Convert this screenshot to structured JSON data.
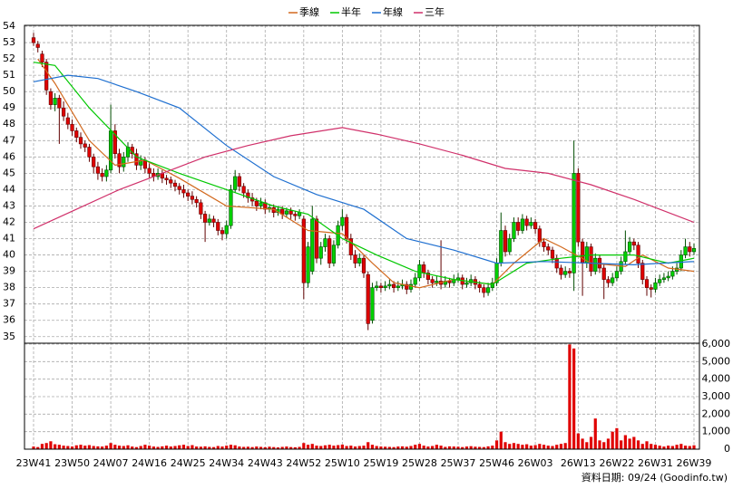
{
  "chart_data": {
    "type": "candlestick",
    "categories": [
      "23W41",
      null,
      null,
      null,
      null,
      null,
      null,
      null,
      null,
      "23W50",
      null,
      null,
      null,
      null,
      null,
      null,
      null,
      null,
      "24W07",
      null,
      null,
      null,
      null,
      null,
      null,
      null,
      null,
      "24W16",
      null,
      null,
      null,
      null,
      null,
      null,
      null,
      null,
      "24W25",
      null,
      null,
      null,
      null,
      null,
      null,
      null,
      null,
      "24W34",
      null,
      null,
      null,
      null,
      null,
      null,
      null,
      null,
      "24W43",
      null,
      null,
      null,
      null,
      null,
      null,
      null,
      null,
      "24W52",
      null,
      null,
      null,
      null,
      null,
      null,
      null,
      null,
      "25W10",
      null,
      null,
      null,
      null,
      null,
      null,
      null,
      null,
      "25W19",
      null,
      null,
      null,
      null,
      null,
      null,
      null,
      null,
      "25W28",
      null,
      null,
      null,
      null,
      null,
      null,
      null,
      null,
      "25W37",
      null,
      null,
      null,
      null,
      null,
      null,
      null,
      null,
      "25W46",
      null,
      null,
      null,
      null,
      null,
      null,
      null,
      null,
      "26W03",
      null,
      null,
      null,
      null,
      null,
      null,
      null,
      null,
      null,
      "26W13",
      null,
      null,
      null,
      null,
      null,
      null,
      null,
      null,
      "26W22",
      null,
      null,
      null,
      null,
      null,
      null,
      null,
      null,
      "26W31",
      null,
      null,
      null,
      null,
      null,
      null,
      null,
      null,
      "26W39"
    ],
    "candles": [
      [
        53.3,
        53.6,
        52.8,
        53.0
      ],
      [
        52.9,
        53.1,
        52.4,
        52.7
      ],
      [
        52.3,
        52.5,
        51.5,
        51.8
      ],
      [
        51.8,
        52.0,
        49.8,
        50.1
      ],
      [
        50.0,
        50.2,
        48.9,
        49.2
      ],
      [
        49.2,
        49.9,
        48.8,
        49.6
      ],
      [
        49.6,
        49.8,
        46.8,
        49.0
      ],
      [
        49.0,
        49.4,
        48.2,
        48.5
      ],
      [
        48.4,
        48.7,
        47.7,
        48.0
      ],
      [
        48.0,
        48.3,
        47.3,
        47.6
      ],
      [
        47.6,
        47.8,
        46.9,
        47.2
      ],
      [
        47.2,
        47.5,
        46.5,
        46.8
      ],
      [
        46.8,
        47.0,
        46.3,
        46.6
      ],
      [
        46.6,
        46.8,
        45.7,
        46.0
      ],
      [
        46.0,
        46.2,
        45.0,
        45.4
      ],
      [
        45.4,
        45.7,
        44.6,
        45.0
      ],
      [
        45.0,
        45.3,
        44.5,
        44.8
      ],
      [
        44.8,
        45.5,
        44.5,
        45.2
      ],
      [
        45.2,
        49.2,
        45.0,
        47.6
      ],
      [
        47.6,
        48.0,
        45.9,
        46.2
      ],
      [
        46.2,
        46.5,
        45.0,
        45.4
      ],
      [
        45.4,
        46.3,
        45.1,
        46.0
      ],
      [
        46.0,
        46.9,
        45.7,
        46.6
      ],
      [
        46.6,
        46.8,
        45.9,
        46.2
      ],
      [
        46.2,
        46.5,
        45.2,
        45.5
      ],
      [
        45.5,
        46.1,
        45.2,
        45.8
      ],
      [
        45.8,
        46.0,
        45.0,
        45.3
      ],
      [
        45.3,
        45.6,
        44.7,
        45.0
      ],
      [
        45.0,
        45.3,
        44.5,
        44.8
      ],
      [
        44.8,
        45.3,
        44.6,
        45.0
      ],
      [
        45.0,
        45.2,
        44.4,
        44.7
      ],
      [
        44.7,
        44.9,
        44.3,
        44.6
      ],
      [
        44.6,
        44.8,
        44.1,
        44.4
      ],
      [
        44.4,
        44.6,
        43.9,
        44.2
      ],
      [
        44.2,
        44.4,
        43.7,
        44.0
      ],
      [
        44.0,
        44.3,
        43.5,
        43.8
      ],
      [
        43.8,
        44.0,
        43.3,
        43.6
      ],
      [
        43.6,
        43.9,
        43.1,
        43.4
      ],
      [
        43.4,
        43.6,
        42.9,
        43.2
      ],
      [
        43.2,
        43.4,
        42.2,
        42.5
      ],
      [
        42.5,
        42.7,
        40.8,
        42.0
      ],
      [
        42.0,
        42.5,
        41.8,
        42.2
      ],
      [
        42.2,
        42.4,
        41.7,
        42.0
      ],
      [
        42.0,
        42.2,
        41.2,
        41.5
      ],
      [
        41.5,
        41.7,
        40.9,
        41.3
      ],
      [
        41.3,
        42.1,
        41.0,
        41.8
      ],
      [
        41.8,
        44.3,
        41.6,
        44.0
      ],
      [
        44.0,
        45.2,
        43.8,
        44.8
      ],
      [
        44.8,
        45.0,
        43.9,
        44.2
      ],
      [
        44.2,
        44.4,
        43.5,
        43.8
      ],
      [
        43.8,
        44.0,
        43.2,
        43.5
      ],
      [
        43.5,
        43.8,
        43.0,
        43.3
      ],
      [
        43.3,
        43.5,
        42.7,
        43.0
      ],
      [
        43.0,
        43.5,
        42.8,
        43.2
      ],
      [
        43.2,
        43.4,
        42.5,
        42.8
      ],
      [
        42.8,
        43.1,
        42.6,
        42.9
      ],
      [
        42.9,
        43.1,
        42.3,
        42.6
      ],
      [
        42.6,
        43.0,
        42.4,
        42.8
      ],
      [
        42.8,
        43.0,
        42.2,
        42.5
      ],
      [
        42.5,
        42.9,
        42.3,
        42.7
      ],
      [
        42.7,
        42.9,
        42.2,
        42.5
      ],
      [
        42.5,
        42.7,
        42.1,
        42.4
      ],
      [
        42.4,
        42.8,
        42.2,
        42.6
      ],
      [
        42.2,
        42.4,
        37.3,
        38.3
      ],
      [
        38.3,
        40.8,
        38.0,
        40.5
      ],
      [
        39.0,
        43.0,
        38.8,
        42.2
      ],
      [
        42.2,
        42.4,
        39.5,
        39.8
      ],
      [
        39.8,
        40.8,
        39.4,
        40.5
      ],
      [
        40.5,
        41.3,
        40.2,
        41.0
      ],
      [
        41.0,
        41.2,
        39.2,
        39.5
      ],
      [
        39.5,
        40.9,
        39.3,
        40.6
      ],
      [
        40.6,
        42.1,
        40.4,
        41.8
      ],
      [
        41.8,
        42.8,
        41.5,
        42.3
      ],
      [
        42.3,
        42.5,
        40.7,
        41.0
      ],
      [
        41.0,
        41.3,
        39.7,
        40.0
      ],
      [
        40.0,
        40.3,
        39.2,
        39.5
      ],
      [
        39.5,
        40.1,
        39.3,
        39.8
      ],
      [
        39.8,
        40.0,
        38.6,
        38.9
      ],
      [
        38.8,
        39.0,
        35.4,
        35.8
      ],
      [
        36.0,
        38.3,
        35.8,
        38.0
      ],
      [
        38.0,
        38.4,
        37.8,
        38.1
      ],
      [
        38.1,
        38.3,
        37.7,
        38.0
      ],
      [
        38.0,
        38.4,
        37.8,
        38.1
      ],
      [
        38.1,
        38.5,
        37.9,
        38.2
      ],
      [
        38.2,
        38.4,
        37.7,
        38.0
      ],
      [
        38.0,
        38.4,
        37.8,
        38.1
      ],
      [
        38.1,
        38.5,
        37.9,
        38.2
      ],
      [
        38.2,
        38.4,
        37.6,
        37.9
      ],
      [
        37.9,
        38.5,
        37.7,
        38.2
      ],
      [
        38.2,
        38.9,
        38.0,
        38.6
      ],
      [
        38.6,
        39.7,
        38.4,
        39.4
      ],
      [
        39.4,
        39.6,
        38.6,
        38.9
      ],
      [
        38.9,
        39.1,
        38.2,
        38.5
      ],
      [
        38.5,
        38.7,
        38.0,
        38.3
      ],
      [
        38.3,
        38.7,
        38.1,
        38.4
      ],
      [
        38.4,
        40.9,
        37.9,
        38.2
      ],
      [
        38.2,
        38.7,
        38.0,
        38.4
      ],
      [
        38.4,
        38.6,
        38.0,
        38.3
      ],
      [
        38.3,
        38.8,
        38.1,
        38.5
      ],
      [
        38.5,
        38.9,
        38.3,
        38.6
      ],
      [
        38.6,
        38.8,
        37.9,
        38.2
      ],
      [
        38.2,
        38.6,
        38.0,
        38.3
      ],
      [
        38.3,
        38.8,
        38.1,
        38.5
      ],
      [
        38.5,
        38.7,
        37.9,
        38.2
      ],
      [
        38.2,
        38.4,
        37.7,
        38.0
      ],
      [
        38.0,
        38.2,
        37.4,
        37.7
      ],
      [
        37.7,
        38.3,
        37.5,
        38.0
      ],
      [
        38.0,
        38.6,
        37.8,
        38.3
      ],
      [
        38.3,
        39.8,
        38.1,
        39.5
      ],
      [
        39.5,
        42.6,
        39.3,
        41.5
      ],
      [
        41.5,
        41.8,
        39.9,
        40.2
      ],
      [
        40.2,
        41.3,
        40.0,
        41.0
      ],
      [
        41.0,
        42.3,
        40.8,
        42.0
      ],
      [
        42.0,
        42.3,
        41.2,
        41.5
      ],
      [
        41.5,
        42.5,
        41.3,
        42.2
      ],
      [
        42.2,
        42.4,
        41.5,
        41.8
      ],
      [
        41.8,
        42.3,
        41.6,
        42.0
      ],
      [
        42.0,
        42.2,
        41.3,
        41.6
      ],
      [
        41.6,
        41.8,
        40.5,
        40.8
      ],
      [
        40.8,
        41.0,
        40.2,
        40.5
      ],
      [
        40.5,
        40.7,
        40.0,
        40.3
      ],
      [
        40.3,
        40.5,
        39.5,
        39.8
      ],
      [
        39.8,
        40.0,
        38.9,
        39.2
      ],
      [
        39.2,
        39.4,
        38.5,
        38.8
      ],
      [
        38.8,
        39.3,
        38.6,
        39.0
      ],
      [
        39.0,
        39.2,
        38.6,
        38.9
      ],
      [
        38.9,
        47.0,
        37.8,
        45.0
      ],
      [
        45.0,
        45.3,
        40.5,
        40.8
      ],
      [
        40.8,
        41.0,
        37.5,
        39.5
      ],
      [
        39.5,
        40.8,
        39.2,
        40.5
      ],
      [
        40.5,
        40.7,
        38.7,
        39.0
      ],
      [
        39.0,
        40.1,
        38.8,
        39.8
      ],
      [
        39.8,
        40.0,
        38.9,
        39.2
      ],
      [
        39.2,
        39.4,
        37.3,
        38.5
      ],
      [
        38.5,
        38.7,
        38.0,
        38.3
      ],
      [
        38.3,
        38.9,
        38.1,
        38.6
      ],
      [
        38.6,
        39.3,
        38.4,
        39.0
      ],
      [
        39.0,
        39.9,
        38.8,
        39.6
      ],
      [
        39.6,
        41.5,
        39.4,
        40.2
      ],
      [
        40.2,
        41.1,
        40.0,
        40.8
      ],
      [
        40.8,
        41.0,
        40.3,
        40.6
      ],
      [
        40.6,
        40.8,
        39.2,
        39.5
      ],
      [
        39.5,
        39.7,
        38.2,
        38.5
      ],
      [
        38.5,
        38.7,
        37.5,
        38.0
      ],
      [
        38.0,
        38.2,
        37.4,
        37.9
      ],
      [
        37.9,
        38.6,
        37.7,
        38.3
      ],
      [
        38.3,
        38.8,
        38.1,
        38.5
      ],
      [
        38.5,
        38.9,
        38.3,
        38.6
      ],
      [
        38.6,
        39.0,
        38.4,
        38.7
      ],
      [
        38.7,
        39.3,
        38.5,
        39.0
      ],
      [
        39.0,
        39.5,
        38.8,
        39.2
      ],
      [
        39.2,
        40.3,
        39.0,
        40.0
      ],
      [
        40.0,
        41.0,
        39.8,
        40.5
      ],
      [
        40.5,
        40.8,
        39.9,
        40.2
      ],
      [
        40.2,
        40.7,
        40.0,
        40.4
      ]
    ],
    "up_color": "#00d000",
    "down_color": "#e00000",
    "ylim": [
      34.6,
      54.0
    ],
    "yticks": [
      35,
      36,
      37,
      38,
      39,
      40,
      41,
      42,
      43,
      44,
      45,
      46,
      47,
      48,
      49,
      50,
      51,
      52,
      53,
      54
    ],
    "grid": true,
    "series": [
      {
        "name": "季線",
        "color": "#d2691e",
        "x": [
          1,
          5,
          13,
          19,
          26,
          34,
          45,
          56,
          64,
          72,
          79,
          84,
          90,
          98,
          107,
          112,
          119,
          123,
          130,
          138,
          142,
          148,
          154
        ],
        "values": [
          52.0,
          50.5,
          47.0,
          45.5,
          45.8,
          44.7,
          43.0,
          42.8,
          41.5,
          41.3,
          39.5,
          38.3,
          38.0,
          38.5,
          38.2,
          39.5,
          41.0,
          40.5,
          39.5,
          39.3,
          40.0,
          39.2,
          39.0
        ]
      },
      {
        "name": "半年",
        "color": "#00c800",
        "x": [
          0,
          5,
          13,
          24,
          34,
          45,
          56,
          64,
          72,
          80,
          89,
          98,
          107,
          115,
          123,
          130,
          140,
          148,
          154
        ],
        "values": [
          51.8,
          51.6,
          49.0,
          46.0,
          45.0,
          44.0,
          43.0,
          42.5,
          41.0,
          40.0,
          39.0,
          38.5,
          38.2,
          39.5,
          39.8,
          40.0,
          40.0,
          39.5,
          39.8
        ]
      },
      {
        "name": "年線",
        "color": "#1e6fd0",
        "x": [
          0,
          8,
          15,
          24,
          34,
          45,
          56,
          66,
          77,
          87,
          98,
          108,
          119,
          130,
          140,
          154
        ],
        "values": [
          50.6,
          51.0,
          50.8,
          50.0,
          49.0,
          46.7,
          44.8,
          43.7,
          42.8,
          41.0,
          40.3,
          39.5,
          39.6,
          39.5,
          39.4,
          39.6
        ]
      },
      {
        "name": "三年",
        "color": "#d0306a",
        "x": [
          0,
          10,
          20,
          30,
          40,
          50,
          60,
          72,
          80,
          90,
          100,
          110,
          120,
          130,
          140,
          154
        ],
        "values": [
          41.6,
          42.8,
          44.0,
          45.0,
          46.0,
          46.7,
          47.3,
          47.8,
          47.4,
          46.8,
          46.1,
          45.3,
          45.0,
          44.3,
          43.4,
          42.0
        ]
      }
    ],
    "volume": {
      "color": "#e00000",
      "ylim": [
        0,
        6000
      ],
      "yticks": [
        0,
        {
          "value": 1000,
          "label": "1,000"
        },
        {
          "value": 2000,
          "label": "2,000"
        },
        {
          "value": 3000,
          "label": "3,000"
        },
        {
          "value": 4000,
          "label": "4,000"
        },
        {
          "value": 5000,
          "label": "5,000"
        },
        {
          "value": 6000,
          "label": "6,000"
        }
      ],
      "values": [
        150,
        120,
        300,
        350,
        450,
        280,
        250,
        200,
        180,
        150,
        220,
        250,
        200,
        230,
        180,
        160,
        150,
        200,
        350,
        250,
        200,
        180,
        220,
        150,
        120,
        180,
        250,
        200,
        150,
        130,
        160,
        200,
        150,
        180,
        220,
        250,
        180,
        230,
        150,
        140,
        160,
        130,
        120,
        180,
        150,
        200,
        250,
        220,
        150,
        130,
        140,
        120,
        150,
        130,
        110,
        140,
        120,
        100,
        130,
        150,
        120,
        110,
        130,
        350,
        250,
        300,
        200,
        180,
        220,
        250,
        200,
        230,
        260,
        180,
        200,
        150,
        180,
        200,
        400,
        250,
        180,
        150,
        140,
        130,
        120,
        150,
        160,
        140,
        180,
        250,
        300,
        200,
        150,
        180,
        250,
        200,
        130,
        160,
        150,
        140,
        120,
        150,
        170,
        140,
        130,
        120,
        160,
        200,
        500,
        1000,
        400,
        300,
        350,
        300,
        250,
        280,
        200,
        230,
        300,
        250,
        200,
        180,
        250,
        300,
        350,
        5980,
        5750,
        900,
        600,
        400,
        700,
        1750,
        500,
        400,
        600,
        1000,
        1200,
        500,
        800,
        600,
        700,
        500,
        300,
        450,
        300,
        250,
        200,
        150,
        200,
        180,
        250,
        300,
        200,
        180,
        220
      ]
    },
    "footer": "資料日期: 09/24 (Goodinfo.tw)"
  }
}
